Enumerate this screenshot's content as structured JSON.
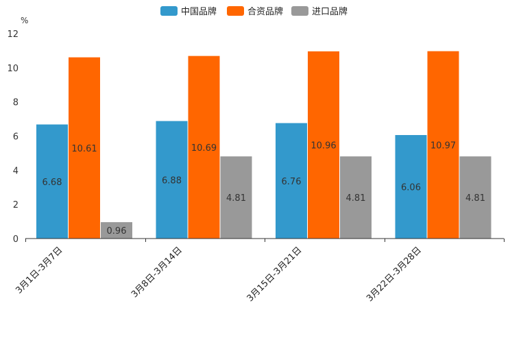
{
  "chart_data": {
    "type": "bar",
    "unit": "%",
    "categories": [
      "3月1日-3月7日",
      "3月8日-3月14日",
      "3月15日-3月21日",
      "3月22日-3月28日"
    ],
    "series": [
      {
        "name": "中国品牌",
        "color": "#3399cc",
        "values": [
          6.68,
          6.88,
          6.76,
          6.06
        ]
      },
      {
        "name": "合资品牌",
        "color": "#ff6600",
        "values": [
          10.61,
          10.69,
          10.96,
          10.97
        ]
      },
      {
        "name": "进口品牌",
        "color": "#999999",
        "values": [
          0.96,
          4.81,
          4.81,
          4.81
        ]
      }
    ],
    "yticks": [
      0,
      2,
      4,
      6,
      8,
      10,
      12
    ],
    "ylim": [
      0,
      12
    ],
    "legend_position": "top-center",
    "grid": false
  }
}
